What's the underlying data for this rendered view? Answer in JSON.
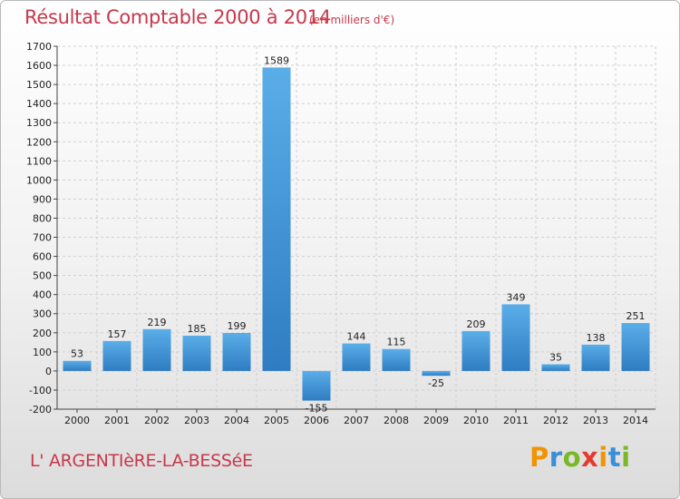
{
  "title": "Résultat Comptable 2000 à 2014",
  "subtitle": "(en milliers d'€)",
  "commune": "L' ARGENTIèRE-LA-BESSéE",
  "logo": {
    "letters": [
      "P",
      "r",
      "o",
      "x",
      "i",
      "t",
      "i"
    ],
    "colors": [
      "#f29400",
      "#3a8fd6",
      "#7ab829",
      "#e73a2f",
      "#f29400",
      "#3a8fd6",
      "#7ab829"
    ]
  },
  "colors": {
    "bar_top": "#5aaee8",
    "bar_bottom": "#2f7cc2",
    "grid": "#d0d0d0",
    "axis": "#444444"
  },
  "chart_data": {
    "type": "bar",
    "title": "Résultat Comptable 2000 à 2014",
    "ylabel": "en milliers d'€",
    "categories": [
      "2000",
      "2001",
      "2002",
      "2003",
      "2004",
      "2005",
      "2006",
      "2007",
      "2008",
      "2009",
      "2010",
      "2011",
      "2012",
      "2013",
      "2014"
    ],
    "values": [
      53,
      157,
      219,
      185,
      199,
      1589,
      -155,
      144,
      115,
      -25,
      209,
      349,
      35,
      138,
      251
    ],
    "labels": [
      "53",
      "157",
      "219",
      "185",
      "199",
      "1589",
      "-155",
      "144",
      "115",
      "-25",
      "209",
      "349",
      "35",
      "138",
      "251"
    ],
    "ylim": [
      -200,
      1700
    ],
    "yticks": [
      -200,
      -100,
      0,
      100,
      200,
      300,
      400,
      500,
      600,
      700,
      800,
      900,
      1000,
      1100,
      1200,
      1300,
      1400,
      1500,
      1600,
      1700
    ],
    "grid": true
  }
}
